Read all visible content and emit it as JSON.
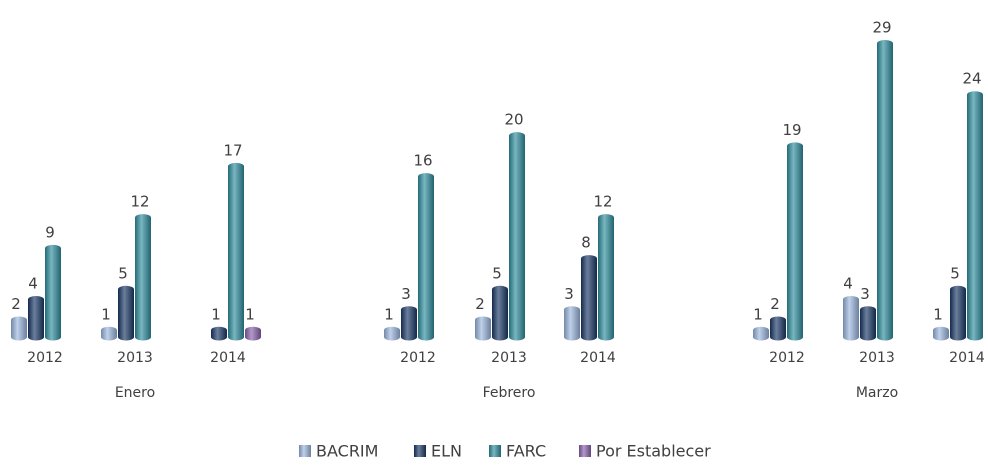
{
  "chart_data": {
    "type": "bar",
    "categories": [
      "2012",
      "2013",
      "2014",
      "2012",
      "2013",
      "2014",
      "2012",
      "2013",
      "2014"
    ],
    "groups": [
      "Enero",
      "Febrero",
      "Marzo"
    ],
    "series": [
      {
        "name": "BACRIM",
        "color": "#9bb7de",
        "values": [
          2,
          1,
          null,
          1,
          2,
          3,
          1,
          4,
          1
        ]
      },
      {
        "name": "ELN",
        "color": "#1b3867",
        "values": [
          4,
          5,
          1,
          3,
          5,
          8,
          2,
          3,
          5
        ]
      },
      {
        "name": "FARC",
        "color": "#2f8e9f",
        "values": [
          9,
          12,
          17,
          16,
          20,
          12,
          19,
          29,
          24
        ]
      },
      {
        "name": "Por Establecer",
        "color": "#8a62ad",
        "values": [
          null,
          null,
          1,
          null,
          null,
          null,
          null,
          null,
          null
        ]
      }
    ]
  }
}
